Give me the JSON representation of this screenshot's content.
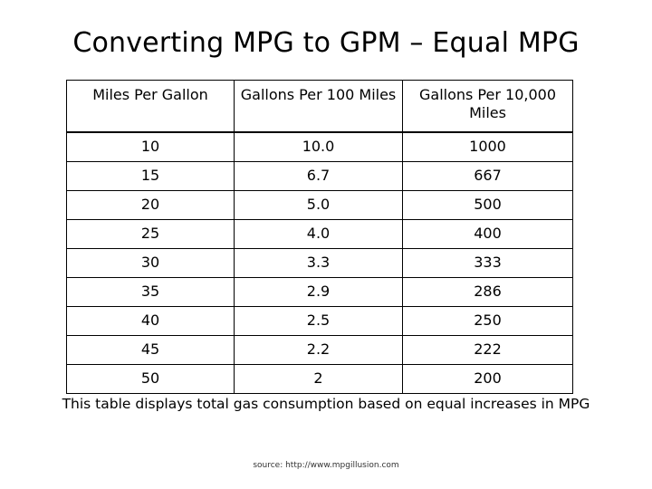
{
  "slide": {
    "title": "Converting MPG to GPM – Equal MPG",
    "caption": "This table displays total gas consumption based on equal increases in MPG",
    "source": "source:  http://www.mpgillusion.com"
  },
  "table": {
    "headers": [
      "Miles Per Gallon",
      "Gallons Per 100 Miles",
      "Gallons Per 10,000 Miles"
    ],
    "rows": [
      [
        "10",
        "10.0",
        "1000"
      ],
      [
        "15",
        "6.7",
        "667"
      ],
      [
        "20",
        "5.0",
        "500"
      ],
      [
        "25",
        "4.0",
        "400"
      ],
      [
        "30",
        "3.3",
        "333"
      ],
      [
        "35",
        "2.9",
        "286"
      ],
      [
        "40",
        "2.5",
        "250"
      ],
      [
        "45",
        "2.2",
        "222"
      ],
      [
        "50",
        "2",
        "200"
      ]
    ]
  }
}
